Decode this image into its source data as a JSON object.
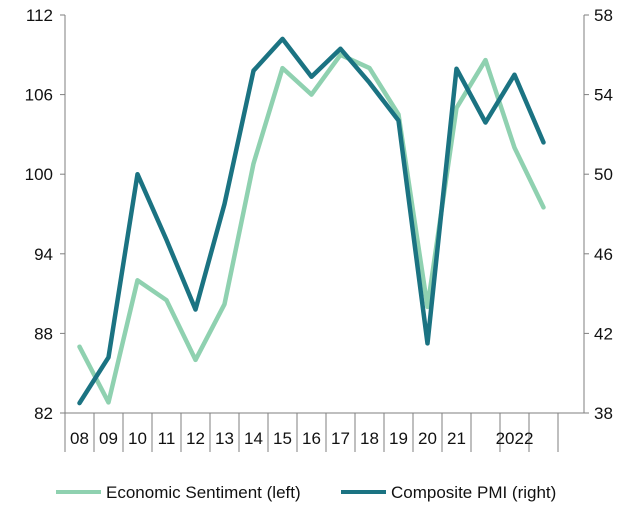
{
  "chart_data": {
    "type": "line",
    "x": [
      "08",
      "09",
      "10",
      "11",
      "12",
      "13",
      "14",
      "15",
      "16",
      "17",
      "18",
      "19",
      "20",
      "21",
      "",
      "2022",
      ""
    ],
    "series": [
      {
        "name": "Economic Sentiment (left)",
        "axis": "left",
        "color": "#8fd1b0",
        "values": [
          87.0,
          82.8,
          92.0,
          90.5,
          86.0,
          90.2,
          100.8,
          108.0,
          106.0,
          109.0,
          108.0,
          104.5,
          90.0,
          105.0,
          108.6,
          102.0,
          97.5
        ]
      },
      {
        "name": "Composite PMI (right)",
        "axis": "right",
        "color": "#1b7382",
        "values": [
          38.5,
          40.8,
          50.0,
          46.7,
          43.2,
          48.5,
          55.2,
          56.8,
          54.9,
          56.3,
          54.6,
          52.7,
          41.5,
          55.3,
          52.6,
          55.0,
          51.6
        ]
      }
    ],
    "left_axis": {
      "min": 82,
      "max": 112,
      "ticks": [
        "82",
        "88",
        "94",
        "100",
        "106",
        "112"
      ]
    },
    "right_axis": {
      "min": 38,
      "max": 58,
      "ticks": [
        "38",
        "42",
        "46",
        "50",
        "54",
        "58"
      ]
    },
    "x_tick_labels": [
      "08",
      "09",
      "10",
      "11",
      "12",
      "13",
      "14",
      "15",
      "16",
      "17",
      "18",
      "19",
      "20",
      "21",
      "2022"
    ],
    "legend": {
      "position": "bottom",
      "entries": [
        "Economic Sentiment (left)",
        "Composite PMI (right)"
      ]
    },
    "grid": false
  }
}
